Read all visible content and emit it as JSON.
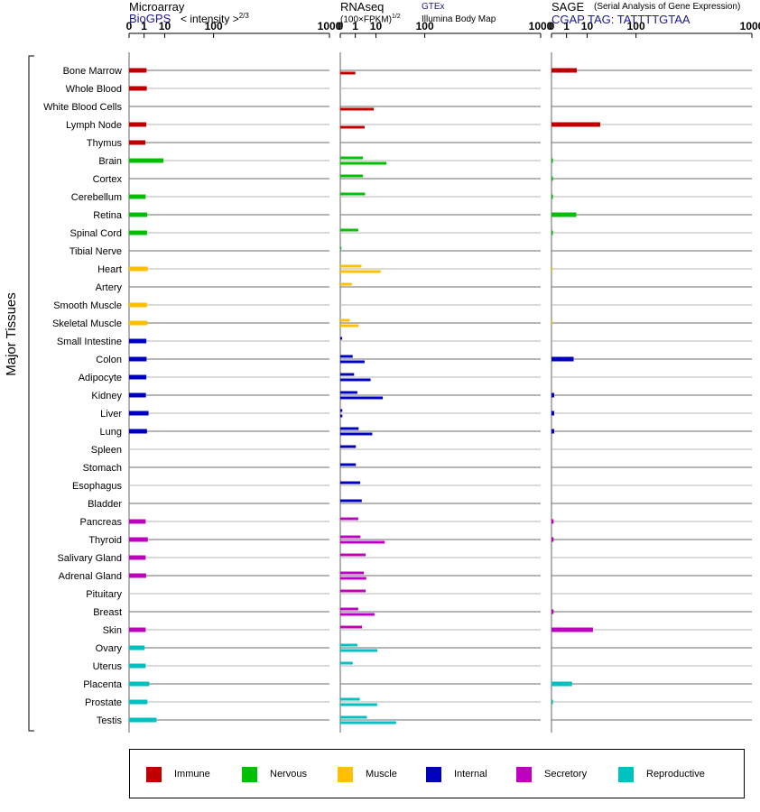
{
  "panels": [
    {
      "id": "microarray",
      "title": "Microarray",
      "subtitle": "BioGPS",
      "scale_label": "< intensity >",
      "exponent": "2/3"
    },
    {
      "id": "rnaseq",
      "title": "RNAseq",
      "scale_label": "(100×FPKM)",
      "exponent": "1/2",
      "source_top": "GTEx",
      "source_bottom": "Illumina Body Map"
    },
    {
      "id": "sage",
      "title": "SAGE",
      "title_note": "(Serial Analysis of Gene Expression)",
      "subtitle": "CGAP TAG: TATTTTGTAA"
    }
  ],
  "axis_label": "Major Tissues",
  "legend": [
    {
      "name": "Immune",
      "color": "#c00000"
    },
    {
      "name": "Nervous",
      "color": "#00c000"
    },
    {
      "name": "Muscle",
      "color": "#ffc000"
    },
    {
      "name": "Internal",
      "color": "#0000c0"
    },
    {
      "name": "Secretory",
      "color": "#c000c0"
    },
    {
      "name": "Reproductive",
      "color": "#00c0c0"
    }
  ],
  "chart_data": {
    "type": "bar",
    "x_scale": "root-transformed",
    "xlim": [
      0,
      1000
    ],
    "xticks": [
      0,
      1,
      10,
      100,
      1000
    ],
    "categories": [
      "Bone Marrow",
      "Whole Blood",
      "White Blood Cells",
      "Lymph Node",
      "Thymus",
      "Brain",
      "Cortex",
      "Cerebellum",
      "Retina",
      "Spinal Cord",
      "Tibial Nerve",
      "Heart",
      "Artery",
      "Smooth Muscle",
      "Skeletal Muscle",
      "Small Intestine",
      "Colon",
      "Adipocyte",
      "Kidney",
      "Liver",
      "Lung",
      "Spleen",
      "Stomach",
      "Esophagus",
      "Bladder",
      "Pancreas",
      "Thyroid",
      "Salivary Gland",
      "Adrenal Gland",
      "Pituitary",
      "Breast",
      "Skin",
      "Ovary",
      "Uterus",
      "Placenta",
      "Prostate",
      "Testis"
    ],
    "category_system": [
      "Immune",
      "Immune",
      "Immune",
      "Immune",
      "Immune",
      "Nervous",
      "Nervous",
      "Nervous",
      "Nervous",
      "Nervous",
      "Nervous",
      "Muscle",
      "Muscle",
      "Muscle",
      "Muscle",
      "Internal",
      "Internal",
      "Internal",
      "Internal",
      "Internal",
      "Internal",
      "Internal",
      "Internal",
      "Internal",
      "Internal",
      "Secretory",
      "Secretory",
      "Secretory",
      "Secretory",
      "Secretory",
      "Secretory",
      "Secretory",
      "Reproductive",
      "Reproductive",
      "Reproductive",
      "Reproductive",
      "Reproductive"
    ],
    "series": [
      {
        "name": "Microarray",
        "values": [
          1.5,
          1.55,
          null,
          1.45,
          1.25,
          9,
          null,
          1.3,
          1.65,
          1.6,
          null,
          1.8,
          null,
          1.6,
          1.7,
          1.45,
          1.5,
          1.45,
          1.35,
          2.0,
          1.6,
          null,
          null,
          null,
          null,
          1.3,
          1.8,
          1.3,
          1.4,
          null,
          null,
          1.3,
          1.1,
          1.3,
          2.2,
          1.7,
          5.0
        ]
      },
      {
        "name": "GTEx",
        "values": [
          null,
          null,
          null,
          null,
          null,
          3.0,
          3.0,
          3.8,
          null,
          1.6,
          0.001,
          2.5,
          0.5,
          null,
          0.3,
          0.004,
          0.6,
          0.8,
          1.4,
          0.005,
          1.7,
          1.1,
          1.1,
          2.1,
          2.6,
          1.6,
          2.2,
          4.0,
          3.3,
          4.0,
          1.6,
          2.7,
          1.4,
          0.6,
          null,
          2.0,
          4.6
        ]
      },
      {
        "name": "Illumina Body Map",
        "values": [
          1.0,
          null,
          8.5,
          3.6,
          null,
          20,
          null,
          null,
          null,
          null,
          null,
          14,
          null,
          null,
          1.7,
          null,
          3.6,
          6.5,
          16,
          0.005,
          7.5,
          null,
          null,
          null,
          null,
          null,
          18,
          null,
          4.3,
          null,
          9.0,
          null,
          11,
          null,
          null,
          11,
          33
        ]
      },
      {
        "name": "SAGE",
        "values": [
          4.0,
          null,
          null,
          23,
          null,
          0.002,
          0.002,
          0.002,
          3.8,
          0.002,
          null,
          0.001,
          null,
          null,
          0.001,
          null,
          2.8,
          null,
          0.01,
          0.01,
          0.01,
          null,
          null,
          null,
          null,
          0.005,
          0.005,
          null,
          null,
          null,
          0.005,
          15,
          null,
          null,
          2.3,
          0.002,
          null
        ]
      }
    ]
  }
}
